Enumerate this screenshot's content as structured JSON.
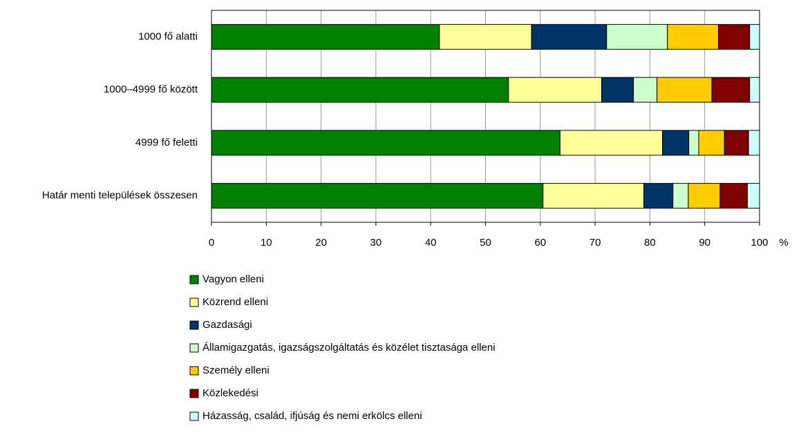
{
  "chart_data": {
    "type": "stacked_barh",
    "categories": [
      "1000 fő alatti",
      "1000–4999 fő között",
      "4999 fő feletti",
      "Határ menti települések összesen"
    ],
    "series": [
      {
        "name": "Vagyon elleni",
        "color": "#008000",
        "values": [
          41.6,
          54.2,
          63.6,
          60.5
        ]
      },
      {
        "name": "Közrend elleni",
        "color": "#ffff99",
        "values": [
          16.8,
          17.0,
          18.7,
          18.4
        ]
      },
      {
        "name": "Gazdasági",
        "color": "#003366",
        "values": [
          13.7,
          5.8,
          4.8,
          5.3
        ]
      },
      {
        "name": "Államigazgatás, igazságszolgáltatás és közélet tisztasága elleni",
        "color": "#ccffcc",
        "values": [
          11.1,
          4.3,
          1.8,
          2.8
        ]
      },
      {
        "name": "Személy elleni",
        "color": "#ffcc00",
        "values": [
          9.3,
          10.0,
          4.7,
          5.8
        ]
      },
      {
        "name": "Közlekedési",
        "color": "#800000",
        "values": [
          5.7,
          6.9,
          4.4,
          5.0
        ]
      },
      {
        "name": "Házasság, család, ifjúság és nemi erkölcs elleni",
        "color": "#ccffff",
        "values": [
          1.8,
          1.8,
          2.0,
          2.2
        ]
      }
    ],
    "xlim": [
      0,
      100
    ],
    "xticks": [
      0,
      10,
      20,
      30,
      40,
      50,
      60,
      70,
      80,
      90,
      100
    ],
    "x_unit": "%",
    "grid": true,
    "legend": "bottom"
  }
}
